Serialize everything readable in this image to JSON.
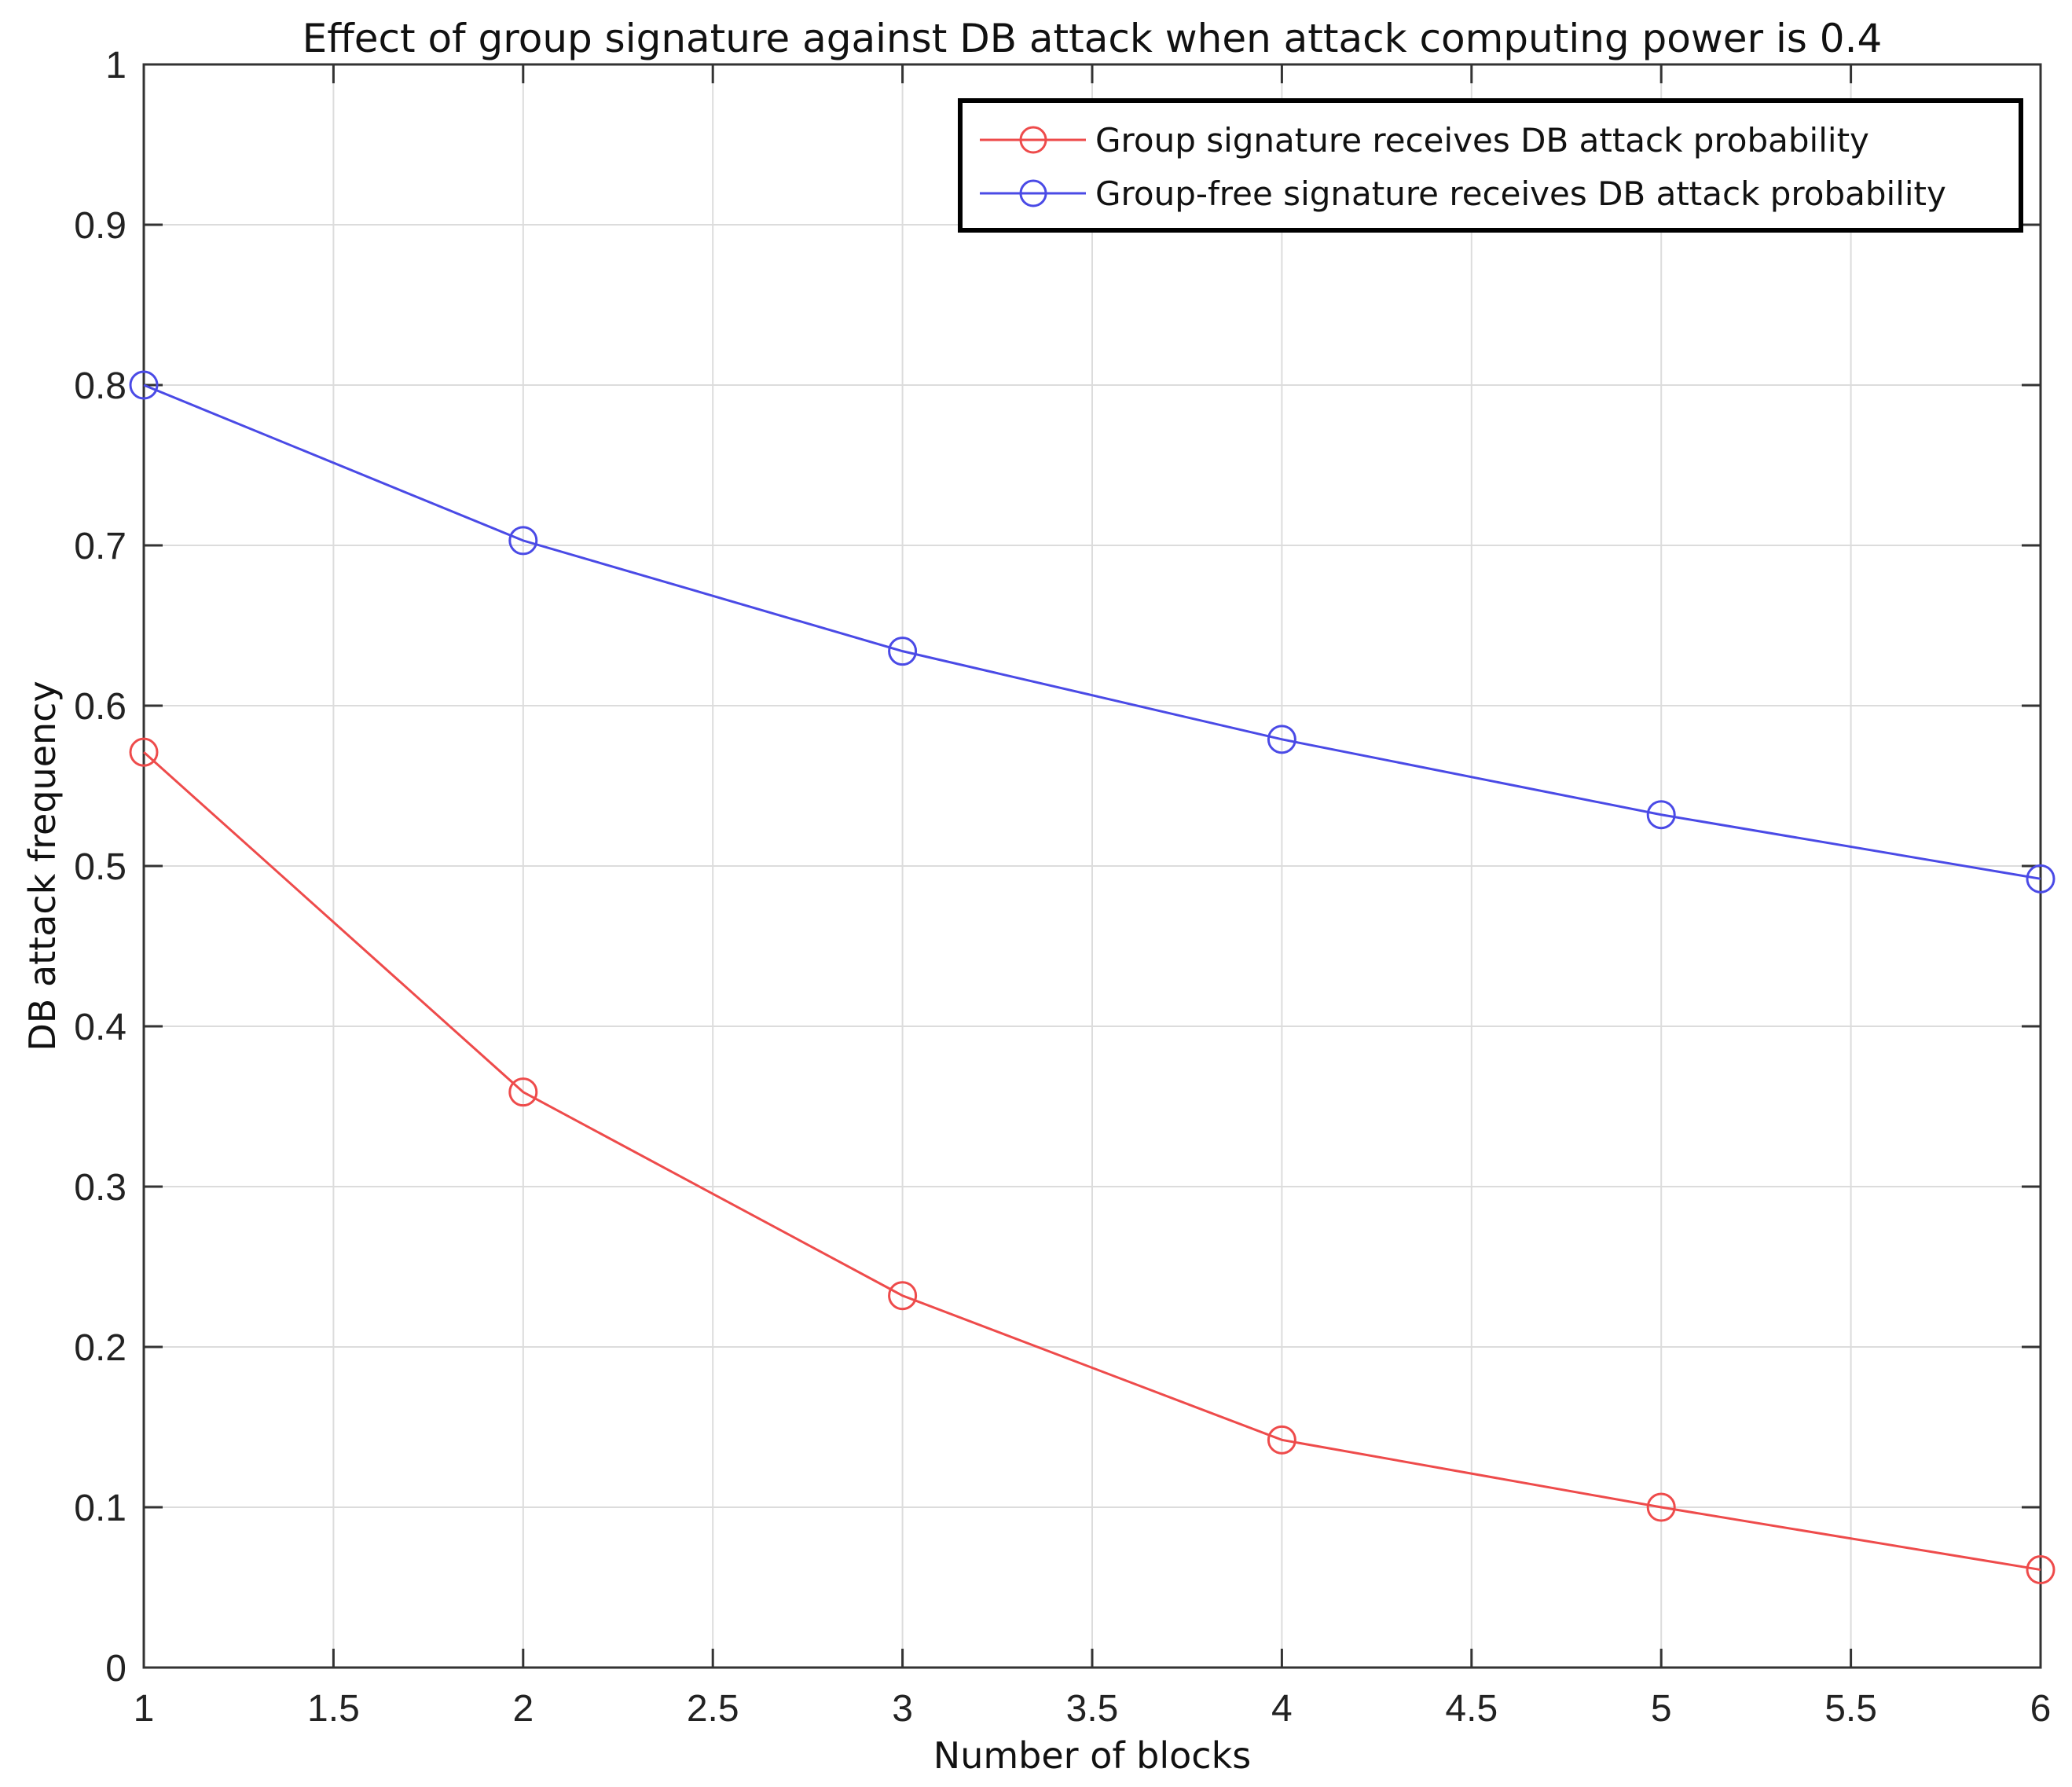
{
  "chart_data": {
    "type": "line",
    "title": "Effect of group signature against DB attack when attack computing power is 0.4",
    "xlabel": "Number of blocks",
    "ylabel": "DB attack frequency",
    "xlim": [
      1,
      6
    ],
    "ylim": [
      0,
      1
    ],
    "xticks": [
      "1",
      "1.5",
      "2",
      "2.5",
      "3",
      "3.5",
      "4",
      "4.5",
      "5",
      "5.5",
      "6"
    ],
    "yticks": [
      "0",
      "0.1",
      "0.2",
      "0.3",
      "0.4",
      "0.5",
      "0.6",
      "0.7",
      "0.8",
      "0.9",
      "1"
    ],
    "grid": true,
    "legend_position": "top-right",
    "x": [
      1,
      2,
      3,
      4,
      5,
      6
    ],
    "series": [
      {
        "name": "Group signature receives DB attack probability",
        "color": "#ee4b4b",
        "marker": "circle",
        "values": [
          0.571,
          0.359,
          0.232,
          0.142,
          0.1,
          0.061
        ]
      },
      {
        "name": "Group-free signature receives DB attack probability",
        "color": "#4a4ae6",
        "marker": "circle",
        "values": [
          0.8,
          0.703,
          0.634,
          0.579,
          0.532,
          0.492
        ]
      }
    ]
  }
}
